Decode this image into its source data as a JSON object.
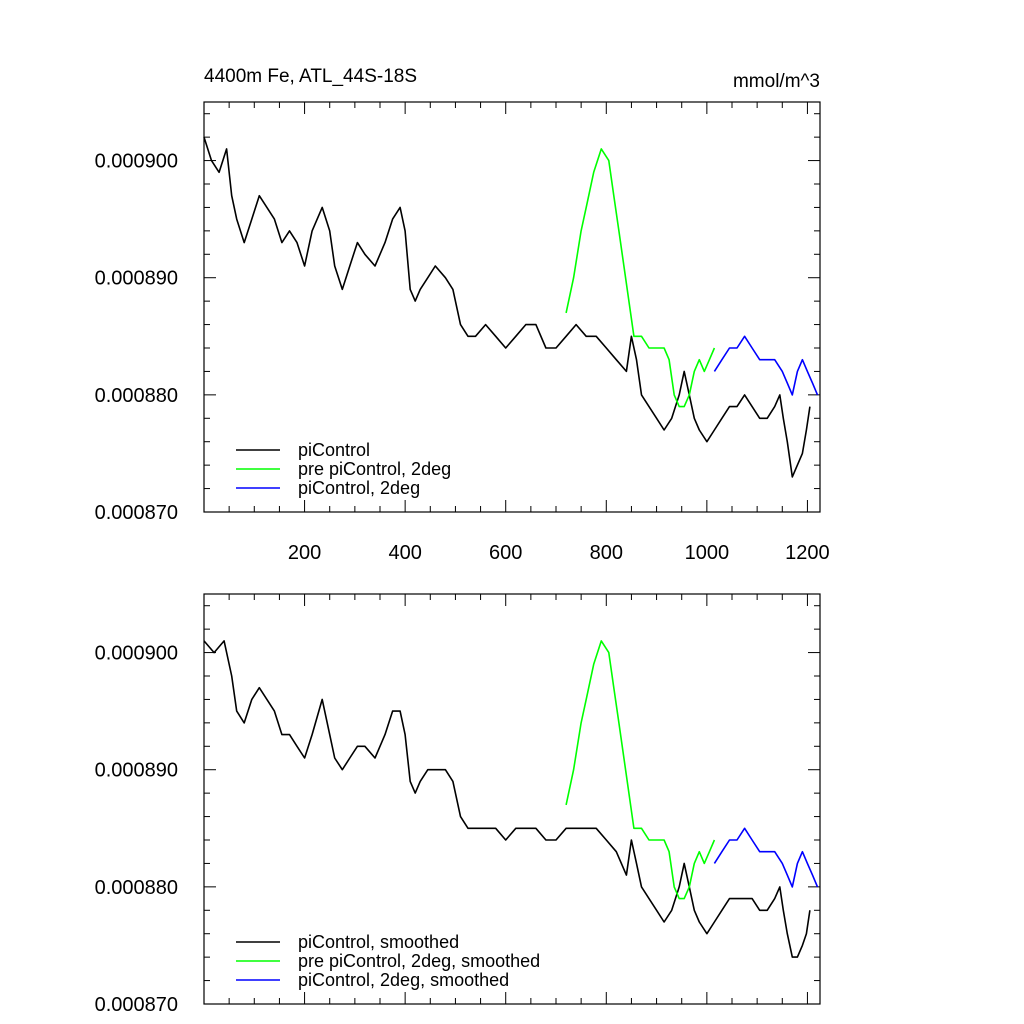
{
  "chart_data": [
    {
      "type": "line",
      "title": "4400m Fe, ATL_44S-18S",
      "units": "mmol/m^3",
      "xlim": [
        0,
        1225
      ],
      "ylim": [
        0.00087,
        0.000905
      ],
      "xticks": [
        200,
        400,
        600,
        800,
        1000,
        1200
      ],
      "xtick_labels": [
        "200",
        "400",
        "600",
        "800",
        "1000",
        "1200"
      ],
      "yticks": [
        0.00087,
        0.00088,
        0.00089,
        0.0009
      ],
      "ytick_labels": [
        "0.000870",
        "0.000880",
        "0.000890",
        "0.000900"
      ],
      "legend_position": "bottom-left",
      "series": [
        {
          "name": "piControl",
          "color": "#000000",
          "points": [
            [
              0,
              0.000902
            ],
            [
              15,
              0.0009
            ],
            [
              30,
              0.000899
            ],
            [
              45,
              0.000901
            ],
            [
              55,
              0.000897
            ],
            [
              65,
              0.000895
            ],
            [
              80,
              0.000893
            ],
            [
              95,
              0.000895
            ],
            [
              110,
              0.000897
            ],
            [
              125,
              0.000896
            ],
            [
              140,
              0.000895
            ],
            [
              155,
              0.000893
            ],
            [
              170,
              0.000894
            ],
            [
              185,
              0.000893
            ],
            [
              200,
              0.000891
            ],
            [
              215,
              0.000894
            ],
            [
              235,
              0.000896
            ],
            [
              250,
              0.000894
            ],
            [
              260,
              0.000891
            ],
            [
              275,
              0.000889
            ],
            [
              290,
              0.000891
            ],
            [
              305,
              0.000893
            ],
            [
              320,
              0.000892
            ],
            [
              340,
              0.000891
            ],
            [
              360,
              0.000893
            ],
            [
              375,
              0.000895
            ],
            [
              390,
              0.000896
            ],
            [
              400,
              0.000894
            ],
            [
              410,
              0.000889
            ],
            [
              420,
              0.000888
            ],
            [
              430,
              0.000889
            ],
            [
              445,
              0.00089
            ],
            [
              460,
              0.000891
            ],
            [
              480,
              0.00089
            ],
            [
              495,
              0.000889
            ],
            [
              510,
              0.000886
            ],
            [
              525,
              0.000885
            ],
            [
              540,
              0.000885
            ],
            [
              560,
              0.000886
            ],
            [
              580,
              0.000885
            ],
            [
              600,
              0.000884
            ],
            [
              620,
              0.000885
            ],
            [
              640,
              0.000886
            ],
            [
              660,
              0.000886
            ],
            [
              680,
              0.000884
            ],
            [
              700,
              0.000884
            ],
            [
              720,
              0.000885
            ],
            [
              740,
              0.000886
            ],
            [
              760,
              0.000885
            ],
            [
              780,
              0.000885
            ],
            [
              800,
              0.000884
            ],
            [
              820,
              0.000883
            ],
            [
              840,
              0.000882
            ],
            [
              850,
              0.000885
            ],
            [
              860,
              0.000883
            ],
            [
              870,
              0.00088
            ],
            [
              885,
              0.000879
            ],
            [
              900,
              0.000878
            ],
            [
              915,
              0.000877
            ],
            [
              930,
              0.000878
            ],
            [
              945,
              0.00088
            ],
            [
              955,
              0.000882
            ],
            [
              965,
              0.00088
            ],
            [
              975,
              0.000878
            ],
            [
              985,
              0.000877
            ],
            [
              1000,
              0.000876
            ],
            [
              1015,
              0.000877
            ],
            [
              1030,
              0.000878
            ],
            [
              1045,
              0.000879
            ],
            [
              1060,
              0.000879
            ],
            [
              1075,
              0.00088
            ],
            [
              1090,
              0.000879
            ],
            [
              1105,
              0.000878
            ],
            [
              1120,
              0.000878
            ],
            [
              1135,
              0.000879
            ],
            [
              1145,
              0.00088
            ],
            [
              1152,
              0.000878
            ],
            [
              1160,
              0.000876
            ],
            [
              1170,
              0.000873
            ],
            [
              1180,
              0.000874
            ],
            [
              1190,
              0.000875
            ],
            [
              1198,
              0.000877
            ],
            [
              1205,
              0.000879
            ]
          ]
        },
        {
          "name": "pre piControl, 2deg",
          "color": "#00ff00",
          "points": [
            [
              720,
              0.000887
            ],
            [
              735,
              0.00089
            ],
            [
              750,
              0.000894
            ],
            [
              760,
              0.000896
            ],
            [
              775,
              0.000899
            ],
            [
              790,
              0.000901
            ],
            [
              805,
              0.0009
            ],
            [
              815,
              0.000897
            ],
            [
              825,
              0.000894
            ],
            [
              835,
              0.000891
            ],
            [
              845,
              0.000888
            ],
            [
              855,
              0.000885
            ],
            [
              870,
              0.000885
            ],
            [
              885,
              0.000884
            ],
            [
              900,
              0.000884
            ],
            [
              915,
              0.000884
            ],
            [
              925,
              0.000883
            ],
            [
              935,
              0.00088
            ],
            [
              945,
              0.000879
            ],
            [
              955,
              0.000879
            ],
            [
              965,
              0.00088
            ],
            [
              975,
              0.000882
            ],
            [
              985,
              0.000883
            ],
            [
              995,
              0.000882
            ],
            [
              1005,
              0.000883
            ],
            [
              1015,
              0.000884
            ]
          ]
        },
        {
          "name": "piControl, 2deg",
          "color": "#0000ff",
          "points": [
            [
              1015,
              0.000882
            ],
            [
              1030,
              0.000883
            ],
            [
              1045,
              0.000884
            ],
            [
              1060,
              0.000884
            ],
            [
              1075,
              0.000885
            ],
            [
              1090,
              0.000884
            ],
            [
              1105,
              0.000883
            ],
            [
              1120,
              0.000883
            ],
            [
              1135,
              0.000883
            ],
            [
              1150,
              0.000882
            ],
            [
              1160,
              0.000881
            ],
            [
              1170,
              0.00088
            ],
            [
              1180,
              0.000882
            ],
            [
              1190,
              0.000883
            ],
            [
              1200,
              0.000882
            ],
            [
              1210,
              0.000881
            ],
            [
              1220,
              0.00088
            ]
          ]
        }
      ]
    },
    {
      "type": "line",
      "title": "",
      "xlim": [
        0,
        1225
      ],
      "ylim": [
        0.00087,
        0.000905
      ],
      "xticks": [
        200,
        400,
        600,
        800,
        1000,
        1200
      ],
      "yticks": [
        0.00087,
        0.00088,
        0.00089,
        0.0009
      ],
      "ytick_labels": [
        "0.000870",
        "0.000880",
        "0.000890",
        "0.000900"
      ],
      "legend_position": "bottom-left",
      "series": [
        {
          "name": "piControl, smoothed",
          "color": "#000000",
          "points": [
            [
              0,
              0.000901
            ],
            [
              20,
              0.0009
            ],
            [
              40,
              0.000901
            ],
            [
              55,
              0.000898
            ],
            [
              65,
              0.000895
            ],
            [
              80,
              0.000894
            ],
            [
              95,
              0.000896
            ],
            [
              110,
              0.000897
            ],
            [
              125,
              0.000896
            ],
            [
              140,
              0.000895
            ],
            [
              155,
              0.000893
            ],
            [
              170,
              0.000893
            ],
            [
              185,
              0.000892
            ],
            [
              200,
              0.000891
            ],
            [
              215,
              0.000893
            ],
            [
              235,
              0.000896
            ],
            [
              250,
              0.000893
            ],
            [
              260,
              0.000891
            ],
            [
              275,
              0.00089
            ],
            [
              290,
              0.000891
            ],
            [
              305,
              0.000892
            ],
            [
              320,
              0.000892
            ],
            [
              340,
              0.000891
            ],
            [
              360,
              0.000893
            ],
            [
              375,
              0.000895
            ],
            [
              390,
              0.000895
            ],
            [
              400,
              0.000893
            ],
            [
              410,
              0.000889
            ],
            [
              420,
              0.000888
            ],
            [
              430,
              0.000889
            ],
            [
              445,
              0.00089
            ],
            [
              460,
              0.00089
            ],
            [
              480,
              0.00089
            ],
            [
              495,
              0.000889
            ],
            [
              510,
              0.000886
            ],
            [
              525,
              0.000885
            ],
            [
              540,
              0.000885
            ],
            [
              560,
              0.000885
            ],
            [
              580,
              0.000885
            ],
            [
              600,
              0.000884
            ],
            [
              620,
              0.000885
            ],
            [
              640,
              0.000885
            ],
            [
              660,
              0.000885
            ],
            [
              680,
              0.000884
            ],
            [
              700,
              0.000884
            ],
            [
              720,
              0.000885
            ],
            [
              740,
              0.000885
            ],
            [
              760,
              0.000885
            ],
            [
              780,
              0.000885
            ],
            [
              800,
              0.000884
            ],
            [
              820,
              0.000883
            ],
            [
              840,
              0.000881
            ],
            [
              850,
              0.000884
            ],
            [
              860,
              0.000882
            ],
            [
              870,
              0.00088
            ],
            [
              885,
              0.000879
            ],
            [
              900,
              0.000878
            ],
            [
              915,
              0.000877
            ],
            [
              930,
              0.000878
            ],
            [
              945,
              0.00088
            ],
            [
              955,
              0.000882
            ],
            [
              965,
              0.00088
            ],
            [
              975,
              0.000878
            ],
            [
              985,
              0.000877
            ],
            [
              1000,
              0.000876
            ],
            [
              1015,
              0.000877
            ],
            [
              1030,
              0.000878
            ],
            [
              1045,
              0.000879
            ],
            [
              1060,
              0.000879
            ],
            [
              1075,
              0.000879
            ],
            [
              1090,
              0.000879
            ],
            [
              1105,
              0.000878
            ],
            [
              1120,
              0.000878
            ],
            [
              1135,
              0.000879
            ],
            [
              1145,
              0.00088
            ],
            [
              1152,
              0.000878
            ],
            [
              1160,
              0.000876
            ],
            [
              1170,
              0.000874
            ],
            [
              1180,
              0.000874
            ],
            [
              1190,
              0.000875
            ],
            [
              1198,
              0.000876
            ],
            [
              1205,
              0.000878
            ]
          ]
        },
        {
          "name": "pre piControl, 2deg, smoothed",
          "color": "#00ff00",
          "points": [
            [
              720,
              0.000887
            ],
            [
              735,
              0.00089
            ],
            [
              750,
              0.000894
            ],
            [
              760,
              0.000896
            ],
            [
              775,
              0.000899
            ],
            [
              790,
              0.000901
            ],
            [
              805,
              0.0009
            ],
            [
              815,
              0.000897
            ],
            [
              825,
              0.000894
            ],
            [
              835,
              0.000891
            ],
            [
              845,
              0.000888
            ],
            [
              855,
              0.000885
            ],
            [
              870,
              0.000885
            ],
            [
              885,
              0.000884
            ],
            [
              900,
              0.000884
            ],
            [
              915,
              0.000884
            ],
            [
              925,
              0.000883
            ],
            [
              935,
              0.00088
            ],
            [
              945,
              0.000879
            ],
            [
              955,
              0.000879
            ],
            [
              965,
              0.00088
            ],
            [
              975,
              0.000882
            ],
            [
              985,
              0.000883
            ],
            [
              995,
              0.000882
            ],
            [
              1005,
              0.000883
            ],
            [
              1015,
              0.000884
            ]
          ]
        },
        {
          "name": "piControl, 2deg, smoothed",
          "color": "#0000ff",
          "points": [
            [
              1015,
              0.000882
            ],
            [
              1030,
              0.000883
            ],
            [
              1045,
              0.000884
            ],
            [
              1060,
              0.000884
            ],
            [
              1075,
              0.000885
            ],
            [
              1090,
              0.000884
            ],
            [
              1105,
              0.000883
            ],
            [
              1120,
              0.000883
            ],
            [
              1135,
              0.000883
            ],
            [
              1150,
              0.000882
            ],
            [
              1160,
              0.000881
            ],
            [
              1170,
              0.00088
            ],
            [
              1180,
              0.000882
            ],
            [
              1190,
              0.000883
            ],
            [
              1200,
              0.000882
            ],
            [
              1210,
              0.000881
            ],
            [
              1220,
              0.00088
            ]
          ]
        }
      ]
    }
  ]
}
